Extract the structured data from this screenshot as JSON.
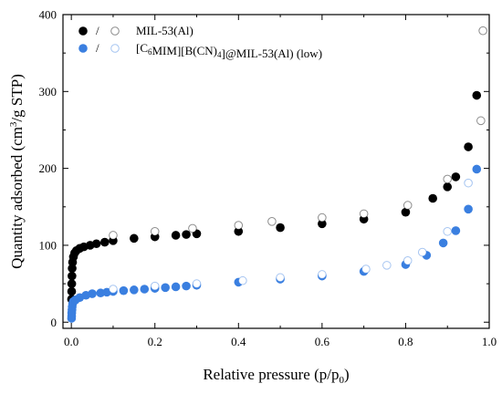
{
  "chart_data": {
    "type": "scatter",
    "xlabel": {
      "main": "Relative pressure (p/p",
      "sub": "0",
      "end": ")"
    },
    "ylabel": {
      "main": "Quantity adsorbed  (cm",
      "sup": "3",
      "end": "/g STP)"
    },
    "xlim": [
      -0.02,
      1.0
    ],
    "ylim": [
      -8,
      400
    ],
    "xticks": [
      0.0,
      0.2,
      0.4,
      0.6,
      0.8,
      1.0
    ],
    "xtick_labels": [
      "0.0",
      "0.2",
      "0.4",
      "0.6",
      "0.8",
      "1.0"
    ],
    "yticks": [
      0,
      100,
      200,
      300,
      400
    ],
    "ytick_labels": [
      "0",
      "100",
      "200",
      "300",
      "400"
    ],
    "legend": {
      "placement": "top-left",
      "entries": [
        {
          "separator": "/",
          "label_parts": [
            {
              "t": "MIL-53(Al)"
            }
          ]
        },
        {
          "separator": "/",
          "label_parts": [
            {
              "t": "[C"
            },
            {
              "t": "6",
              "sub": true
            },
            {
              "t": "MIM][B(CN)"
            },
            {
              "t": "4",
              "sub": true
            },
            {
              "t": "]@MIL-53(Al) (low)"
            }
          ]
        }
      ]
    },
    "series": [
      {
        "name": "MIL-53(Al) adsorption",
        "color": "#000000",
        "fill": true,
        "points": [
          [
            0.0005,
            30
          ],
          [
            0.0008,
            40
          ],
          [
            0.001,
            50
          ],
          [
            0.0015,
            60
          ],
          [
            0.002,
            70
          ],
          [
            0.003,
            78
          ],
          [
            0.005,
            85
          ],
          [
            0.008,
            90
          ],
          [
            0.012,
            93
          ],
          [
            0.02,
            96
          ],
          [
            0.03,
            98
          ],
          [
            0.045,
            100
          ],
          [
            0.06,
            102
          ],
          [
            0.08,
            104
          ],
          [
            0.1,
            106
          ],
          [
            0.15,
            109
          ],
          [
            0.2,
            111
          ],
          [
            0.25,
            113
          ],
          [
            0.275,
            114
          ],
          [
            0.3,
            115
          ],
          [
            0.4,
            118
          ],
          [
            0.5,
            123
          ],
          [
            0.6,
            128
          ],
          [
            0.7,
            134
          ],
          [
            0.8,
            143
          ],
          [
            0.865,
            161
          ],
          [
            0.9,
            176
          ],
          [
            0.92,
            189
          ],
          [
            0.95,
            228
          ],
          [
            0.97,
            295
          ]
        ]
      },
      {
        "name": "MIL-53(Al) desorption",
        "color": "#000000",
        "fill": false,
        "points": [
          [
            0.1,
            113
          ],
          [
            0.2,
            118
          ],
          [
            0.29,
            122
          ],
          [
            0.4,
            126
          ],
          [
            0.48,
            131
          ],
          [
            0.6,
            136
          ],
          [
            0.7,
            141
          ],
          [
            0.805,
            152
          ],
          [
            0.9,
            186
          ],
          [
            0.98,
            262
          ],
          [
            0.985,
            379
          ]
        ]
      },
      {
        "name": "[C6MIM][B(CN)4]@MIL-53(Al) (low) adsorption",
        "color": "#3a7fe0",
        "fill": true,
        "points": [
          [
            0.0005,
            5
          ],
          [
            0.0008,
            8
          ],
          [
            0.001,
            12
          ],
          [
            0.0015,
            16
          ],
          [
            0.002,
            20
          ],
          [
            0.003,
            24
          ],
          [
            0.005,
            27
          ],
          [
            0.01,
            29
          ],
          [
            0.02,
            32
          ],
          [
            0.035,
            35
          ],
          [
            0.05,
            37
          ],
          [
            0.07,
            38
          ],
          [
            0.085,
            39
          ],
          [
            0.1,
            40
          ],
          [
            0.125,
            41
          ],
          [
            0.15,
            42
          ],
          [
            0.175,
            43
          ],
          [
            0.2,
            44
          ],
          [
            0.225,
            45
          ],
          [
            0.25,
            46
          ],
          [
            0.275,
            47
          ],
          [
            0.3,
            48
          ],
          [
            0.4,
            52
          ],
          [
            0.5,
            56
          ],
          [
            0.6,
            60
          ],
          [
            0.7,
            66
          ],
          [
            0.8,
            75
          ],
          [
            0.85,
            87
          ],
          [
            0.89,
            103
          ],
          [
            0.92,
            119
          ],
          [
            0.95,
            147
          ],
          [
            0.97,
            199
          ]
        ]
      },
      {
        "name": "[C6MIM][B(CN)4]@MIL-53(Al) (low) desorption",
        "color": "#3a7fe0",
        "fill": false,
        "points": [
          [
            0.1,
            43
          ],
          [
            0.2,
            47
          ],
          [
            0.3,
            50
          ],
          [
            0.41,
            54
          ],
          [
            0.5,
            58
          ],
          [
            0.6,
            62
          ],
          [
            0.705,
            69
          ],
          [
            0.755,
            74
          ],
          [
            0.805,
            80
          ],
          [
            0.84,
            91
          ],
          [
            0.9,
            118
          ],
          [
            0.95,
            181
          ]
        ]
      }
    ]
  }
}
